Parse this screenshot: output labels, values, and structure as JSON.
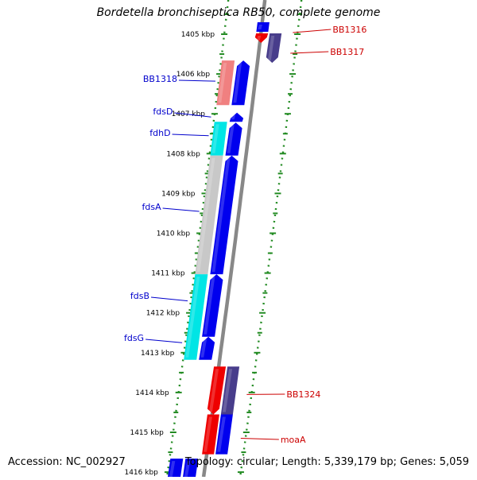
{
  "title": "Bordetella bronchiseptica RB50, complete genome",
  "footer": {
    "accession": "Accession: NC_002927",
    "topology": "Topology: circular; Length: 5,339,179 bp; Genes: 5,059"
  },
  "colors": {
    "axis": "#888888",
    "dots": "#228B22",
    "ticks": "#228B22",
    "label_blue": "#0000cc",
    "label_red": "#cc0000",
    "blue": "#0000ee",
    "red": "#ee0000",
    "pink": "#f08080",
    "cyan": "#00e5e5",
    "gray": "#c8c8c8",
    "purple": "#483d8b"
  },
  "kbp_ticks": [
    "1405 kbp",
    "1406 kbp",
    "1407 kbp",
    "1408 kbp",
    "1409 kbp",
    "1410 kbp",
    "1411 kbp",
    "1412 kbp",
    "1413 kbp",
    "1414 kbp",
    "1415 kbp",
    "1416 kbp"
  ],
  "genes": [
    {
      "name": "BB1316",
      "label_color": "red",
      "side": "right",
      "lane": "R1",
      "color": "red",
      "start": 1404.98,
      "end": 1405.22,
      "arrow": "down"
    },
    {
      "name": "BB1317",
      "label_color": "red",
      "side": "right",
      "lane": "R2",
      "color": "purple",
      "start": 1404.98,
      "end": 1405.72,
      "arrow": "down"
    },
    {
      "name": "BB1318",
      "label_color": "blue",
      "side": "left",
      "lane": "L2",
      "color": "pink",
      "start": 1405.66,
      "end": 1406.78,
      "arrow": "none"
    },
    {
      "name": "",
      "side": "left",
      "lane": "L1",
      "color": "blue",
      "start": 1405.66,
      "end": 1406.78,
      "arrow": "up"
    },
    {
      "name": "fdsD",
      "label_color": "blue",
      "side": "left",
      "lane": "L1",
      "color": "blue",
      "start": 1406.97,
      "end": 1407.2,
      "arrow": "up"
    },
    {
      "name": "fdhD",
      "label_color": "blue",
      "side": "left",
      "lane": "L2",
      "color": "cyan",
      "start": 1407.2,
      "end": 1408.05,
      "arrow": "none"
    },
    {
      "name": "",
      "side": "left",
      "lane": "L1",
      "color": "blue",
      "start": 1407.22,
      "end": 1408.05,
      "arrow": "up"
    },
    {
      "name": "fdsA",
      "label_color": "blue",
      "side": "left",
      "lane": "L2",
      "color": "gray",
      "start": 1408.05,
      "end": 1411.03,
      "arrow": "none"
    },
    {
      "name": "",
      "side": "left",
      "lane": "L1",
      "color": "blue",
      "start": 1408.05,
      "end": 1411.03,
      "arrow": "up"
    },
    {
      "name": "fdsB",
      "label_color": "blue",
      "side": "left",
      "lane": "L2",
      "color": "cyan",
      "start": 1411.03,
      "end": 1413.18,
      "arrow": "none"
    },
    {
      "name": "",
      "side": "left",
      "lane": "L1",
      "color": "blue",
      "start": 1411.03,
      "end": 1412.6,
      "arrow": "up"
    },
    {
      "name": "fdsG",
      "label_color": "blue",
      "side": "left",
      "lane": "L1",
      "color": "blue",
      "start": 1412.6,
      "end": 1413.18,
      "arrow": "up"
    },
    {
      "name": "BB1324",
      "label_color": "red",
      "side": "right",
      "lane": "R1",
      "color": "red",
      "start": 1413.35,
      "end": 1414.55,
      "arrow": "down"
    },
    {
      "name": "",
      "side": "right",
      "lane": "R2",
      "color": "purple",
      "start": 1413.35,
      "end": 1414.55,
      "arrow": "none"
    },
    {
      "name": "moaA",
      "label_color": "red",
      "side": "right",
      "lane": "R1",
      "color": "red",
      "start": 1414.55,
      "end": 1415.55,
      "arrow": "none"
    },
    {
      "name": "",
      "side": "right",
      "lane": "R2",
      "color": "blue",
      "start": 1414.55,
      "end": 1415.55,
      "arrow": "none"
    },
    {
      "name": "",
      "side": "left",
      "lane": "L2",
      "color": "blue",
      "start": 1415.66,
      "end": 1416.3,
      "arrow": "none"
    },
    {
      "name": "",
      "side": "left",
      "lane": "L1",
      "color": "blue",
      "start": 1415.66,
      "end": 1416.3,
      "arrow": "none"
    },
    {
      "name": "",
      "side": "right",
      "lane": "R1",
      "color": "blue",
      "start": 1404.7,
      "end": 1404.94,
      "arrow": "none"
    }
  ]
}
